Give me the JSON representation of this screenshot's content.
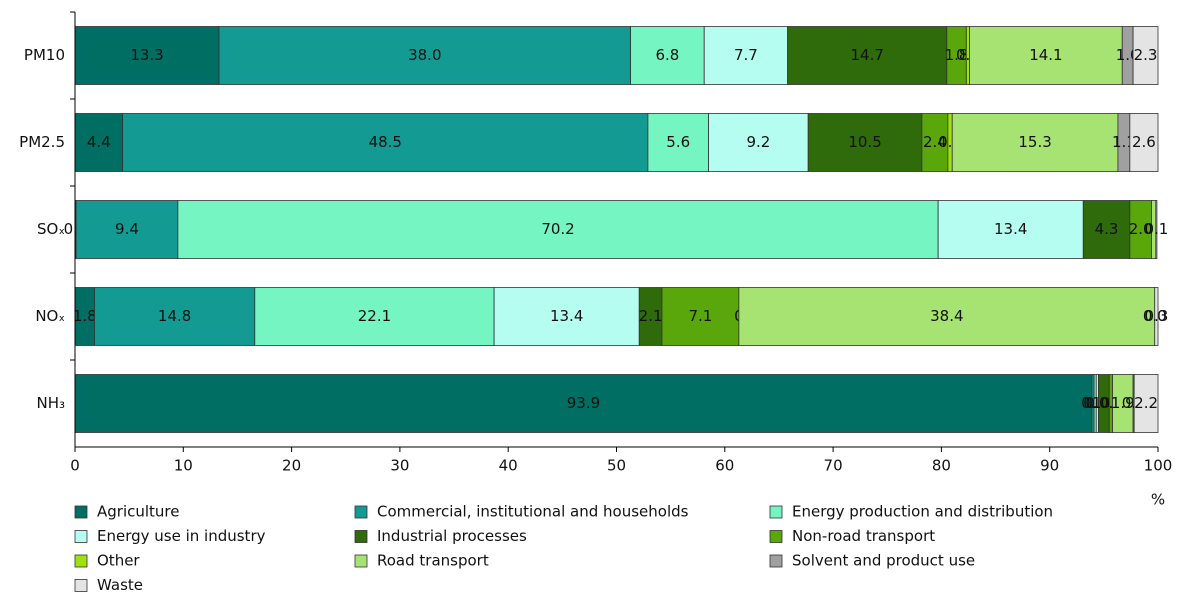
{
  "chart_data": {
    "type": "stacked_barh",
    "categories": [
      "PM10",
      "PM2.5",
      "SOₓ",
      "NOₓ",
      "NH₃"
    ],
    "series": [
      {
        "name": "Agriculture",
        "color": "#006e63",
        "values": [
          13.3,
          4.4,
          0.1,
          1.8,
          93.9
        ],
        "value_labels": [
          "13.3",
          "4.4",
          "0.1",
          "1.8",
          "93.9"
        ]
      },
      {
        "name": "Commercial, institutional and households",
        "color": "#139b93",
        "values": [
          38,
          48.5,
          9.4,
          14.8,
          0.2
        ],
        "value_labels": [
          "38.0",
          "48.5",
          "9.4",
          "14.8",
          "0.2"
        ]
      },
      {
        "name": "Energy production and distribution",
        "color": "#74f5c1",
        "values": [
          6.8,
          5.6,
          70.2,
          22.1,
          0.2
        ],
        "value_labels": [
          "6.8",
          "5.6",
          "70.2",
          "22.1",
          "0.2"
        ]
      },
      {
        "name": "Energy use in industry",
        "color": "#b5fdf0",
        "values": [
          7.7,
          9.2,
          13.4,
          13.4,
          0.2
        ],
        "value_labels": [
          "7.7",
          "9.2",
          "13.4",
          "13.4",
          "0.2"
        ]
      },
      {
        "name": "Industrial processes",
        "color": "#2f6a0b",
        "values": [
          14.7,
          10.5,
          4.3,
          2.1,
          1
        ],
        "value_labels": [
          "14.7",
          "10.5",
          "4.3",
          "2.1",
          "1.0"
        ]
      },
      {
        "name": "Non-road transport",
        "color": "#5aa70c",
        "values": [
          1.8,
          2.4,
          2,
          7.1,
          0.3
        ],
        "value_labels": [
          "1.8",
          "2.4",
          "2.0",
          "7.1",
          "0.3"
        ]
      },
      {
        "name": "Other",
        "color": "#9ee20e",
        "values": [
          0.3,
          0.4,
          0,
          0,
          0
        ],
        "value_labels": [
          "0.3",
          "0.4",
          null,
          "0",
          "0.0"
        ]
      },
      {
        "name": "Road transport",
        "color": "#a6e373",
        "values": [
          14.1,
          15.3,
          0.4,
          38.4,
          1.9
        ],
        "value_labels": [
          "14.1",
          "15.3",
          null,
          "38.4",
          "1.9"
        ]
      },
      {
        "name": "Solvent and product use",
        "color": "#a0a0a0",
        "values": [
          1,
          1.1,
          0,
          0,
          0.1
        ],
        "value_labels": [
          "1.0",
          "1.1",
          null,
          "0.0",
          "0.1"
        ]
      },
      {
        "name": "Waste",
        "color": "#e4e4e4",
        "values": [
          2.3,
          2.6,
          0.1,
          0.3,
          2.2
        ],
        "value_labels": [
          "2.3",
          "2.6",
          "0.1",
          "0.3",
          "2.2"
        ]
      }
    ],
    "x_label": "%",
    "xlim": [
      0,
      100
    ],
    "xticks": [
      0,
      10,
      20,
      30,
      40,
      50,
      60,
      70,
      80,
      90,
      100
    ]
  }
}
